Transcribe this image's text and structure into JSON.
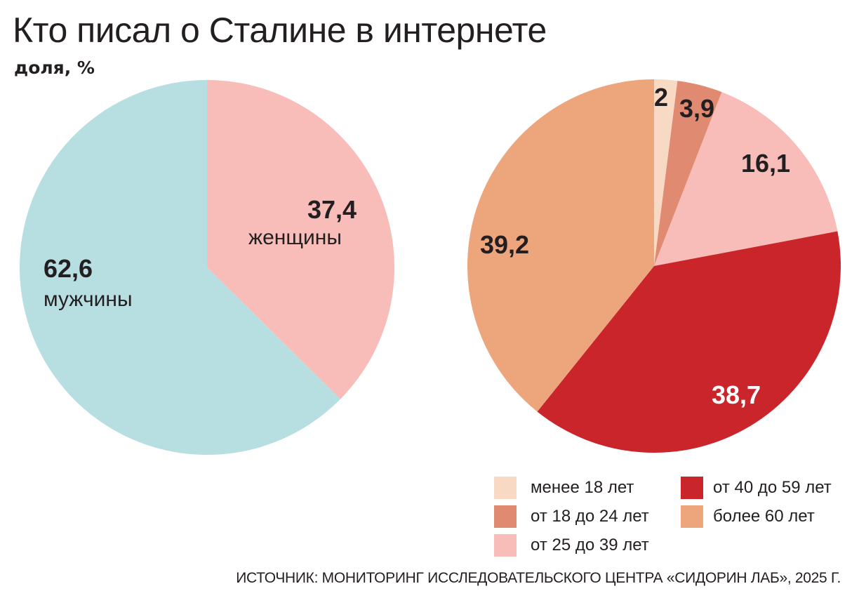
{
  "title": "Кто писал о Сталине в интернете",
  "subtitle": "доля, %",
  "source": "ИСТОЧНИК: МОНИТОРИНГ ИССЛЕДОВАТЕЛЬСКОГО ЦЕНТРА «СИДОРИН ЛАБ», 2025 Г.",
  "chart_data": [
    {
      "type": "pie",
      "title": "Gender",
      "slices": [
        {
          "label": "женщины",
          "value": 37.4,
          "value_label": "37,4",
          "color": "#f8bdb8"
        },
        {
          "label": "мужчины",
          "value": 62.6,
          "value_label": "62,6",
          "color": "#b7dfe1"
        }
      ]
    },
    {
      "type": "pie",
      "title": "Age",
      "slices": [
        {
          "label": "менее 18 лет",
          "value": 2,
          "value_label": "2",
          "color": "#f8d9c4"
        },
        {
          "label": "от 18 до 24 лет",
          "value": 3.9,
          "value_label": "3,9",
          "color": "#e08a72"
        },
        {
          "label": "от 25 до 39 лет",
          "value": 16.1,
          "value_label": "16,1",
          "color": "#f8bdb8"
        },
        {
          "label": "от 40 до 59 лет",
          "value": 38.7,
          "value_label": "38,7",
          "color": "#c9252b"
        },
        {
          "label": "более 60 лет",
          "value": 39.2,
          "value_label": "39,2",
          "color": "#eda57c"
        }
      ],
      "legend": "bottom-right"
    }
  ]
}
